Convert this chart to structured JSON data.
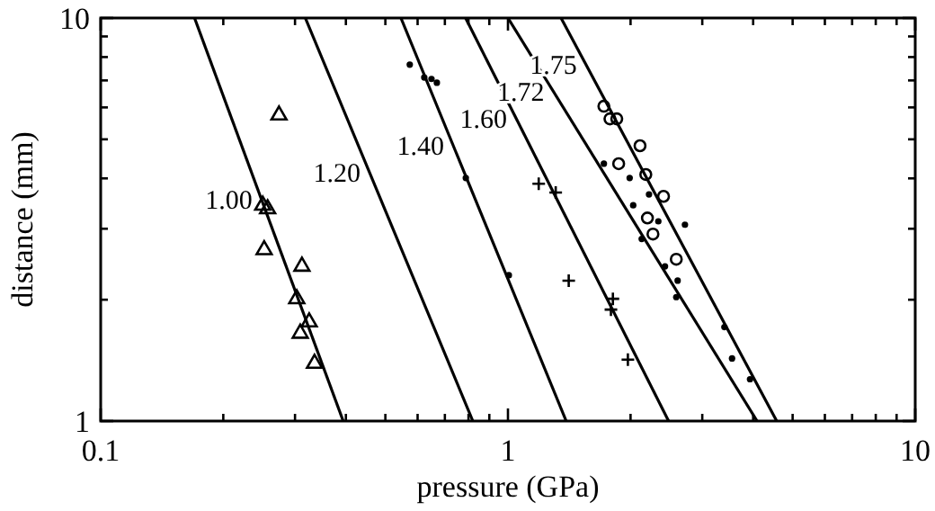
{
  "chart_data": {
    "type": "line",
    "xlabel": "pressure (GPa)",
    "ylabel": "distance (mm)",
    "log": "xy",
    "grid": false,
    "xlim": [
      0.1,
      10
    ],
    "ylim": [
      1,
      10
    ],
    "xticks": [
      0.1,
      {
        "value": 0.2,
        "label": null
      },
      {
        "value": 0.3,
        "label": null
      },
      {
        "value": 0.4,
        "label": null
      },
      {
        "value": 0.5,
        "label": null
      },
      {
        "value": 0.6,
        "label": null
      },
      {
        "value": 0.7,
        "label": null
      },
      {
        "value": 0.8,
        "label": null
      },
      {
        "value": 0.9,
        "label": null
      },
      1,
      {
        "value": 2,
        "label": null
      },
      {
        "value": 3,
        "label": null
      },
      {
        "value": 4,
        "label": null
      },
      {
        "value": 5,
        "label": null
      },
      {
        "value": 6,
        "label": null
      },
      {
        "value": 7,
        "label": null
      },
      {
        "value": 8,
        "label": null
      },
      {
        "value": 9,
        "label": null
      },
      10
    ],
    "yticks": [
      1,
      {
        "value": 2,
        "label": null
      },
      {
        "value": 3,
        "label": null
      },
      {
        "value": 4,
        "label": null
      },
      {
        "value": 5,
        "label": null
      },
      {
        "value": 6,
        "label": null
      },
      {
        "value": 7,
        "label": null
      },
      {
        "value": 8,
        "label": null
      },
      {
        "value": 9,
        "label": null
      },
      10
    ],
    "series": [
      {
        "name": "1.00",
        "color": "#000000",
        "x": [
          0.17,
          0.394
        ],
        "values": [
          10,
          1
        ]
      },
      {
        "name": "1.20",
        "color": "#000000",
        "x": [
          0.318,
          0.82
        ],
        "values": [
          10,
          1
        ]
      },
      {
        "name": "1.40",
        "color": "#000000",
        "x": [
          0.546,
          1.39
        ],
        "values": [
          10,
          1
        ]
      },
      {
        "name": "1.60",
        "color": "#000000",
        "x": [
          0.787,
          2.48
        ],
        "values": [
          10,
          1
        ]
      },
      {
        "name": "1.72",
        "color": "#000000",
        "x": [
          1.0,
          4.09
        ],
        "values": [
          10,
          1
        ]
      },
      {
        "name": "1.75",
        "color": "#000000",
        "x": [
          1.35,
          4.57
        ],
        "values": [
          10,
          1
        ]
      },
      {
        "type": "scatter",
        "marker": "triangle",
        "color": "#000000",
        "x": [
          0.274,
          0.25,
          0.257,
          0.252,
          0.312,
          0.303,
          0.325,
          0.309,
          0.335
        ],
        "values": [
          5.74,
          3.43,
          3.36,
          2.66,
          2.42,
          2.01,
          1.76,
          1.65,
          1.39
        ]
      },
      {
        "type": "scatter",
        "marker": "cross",
        "color": "#000000",
        "x": [
          1.19,
          1.31,
          1.41,
          1.81,
          1.79,
          1.97
        ],
        "values": [
          3.88,
          3.69,
          2.23,
          2.01,
          1.89,
          1.42
        ]
      },
      {
        "type": "scatter",
        "marker": "circle",
        "color": "#000000",
        "x": [
          1.72,
          1.78,
          1.85,
          2.11,
          1.87,
          2.18,
          2.41,
          2.2,
          2.27,
          2.59
        ],
        "values": [
          6.04,
          5.62,
          5.62,
          4.82,
          4.35,
          4.09,
          3.61,
          3.19,
          2.91,
          2.52
        ]
      },
      {
        "type": "scatter",
        "marker": "dot",
        "color": "#000000",
        "x": [
          0.574,
          0.623,
          0.649,
          0.669,
          0.788,
          1.005,
          1.72,
          1.99,
          2.22,
          2.03,
          2.34,
          2.72,
          2.13,
          2.43,
          2.61,
          2.59,
          3.4,
          3.55,
          3.93
        ],
        "values": [
          7.66,
          7.12,
          7.06,
          6.91,
          4.01,
          2.3,
          4.35,
          4.01,
          3.65,
          3.43,
          3.13,
          3.07,
          2.83,
          2.42,
          2.23,
          2.03,
          1.71,
          1.43,
          1.27
        ]
      }
    ]
  }
}
